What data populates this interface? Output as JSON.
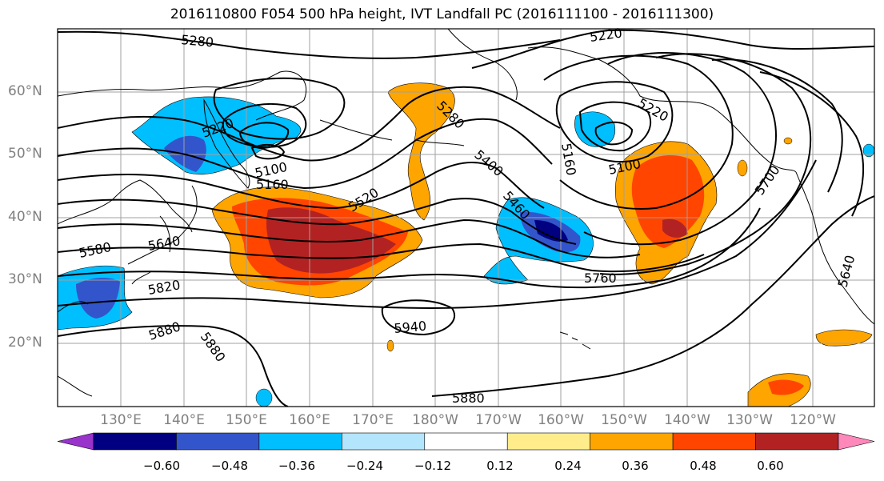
{
  "title": "2016110800 F054 500 hPa height, IVT Landfall PC (2016111100 - 2016111300)",
  "lat_labels": [
    "60°N",
    "50°N",
    "40°N",
    "30°N",
    "20°N"
  ],
  "lon_labels": [
    "130°E",
    "140°E",
    "150°E",
    "160°E",
    "170°E",
    "180°W",
    "170°W",
    "160°W",
    "150°W",
    "140°W",
    "130°W",
    "120°W"
  ],
  "contour_labels": [
    "5280",
    "5220",
    "5220",
    "5100",
    "5160",
    "5520",
    "5280",
    "5400",
    "5460",
    "5220",
    "5160",
    "5100",
    "5700",
    "5580",
    "5640",
    "5820",
    "5880",
    "5880",
    "5940",
    "5760",
    "5880",
    "5640"
  ],
  "colorbar": {
    "ticks": [
      "−0.60",
      "−0.48",
      "−0.36",
      "−0.24",
      "−0.12",
      "0.12",
      "0.24",
      "0.36",
      "0.48",
      "0.60"
    ],
    "colors": [
      "#9933cc",
      "#000080",
      "#3355cc",
      "#00bfff",
      "#b3e5fc",
      "#ffffff",
      "#ffec8b",
      "#ffa500",
      "#ff4500",
      "#b22222",
      "#ff88bb"
    ]
  }
}
